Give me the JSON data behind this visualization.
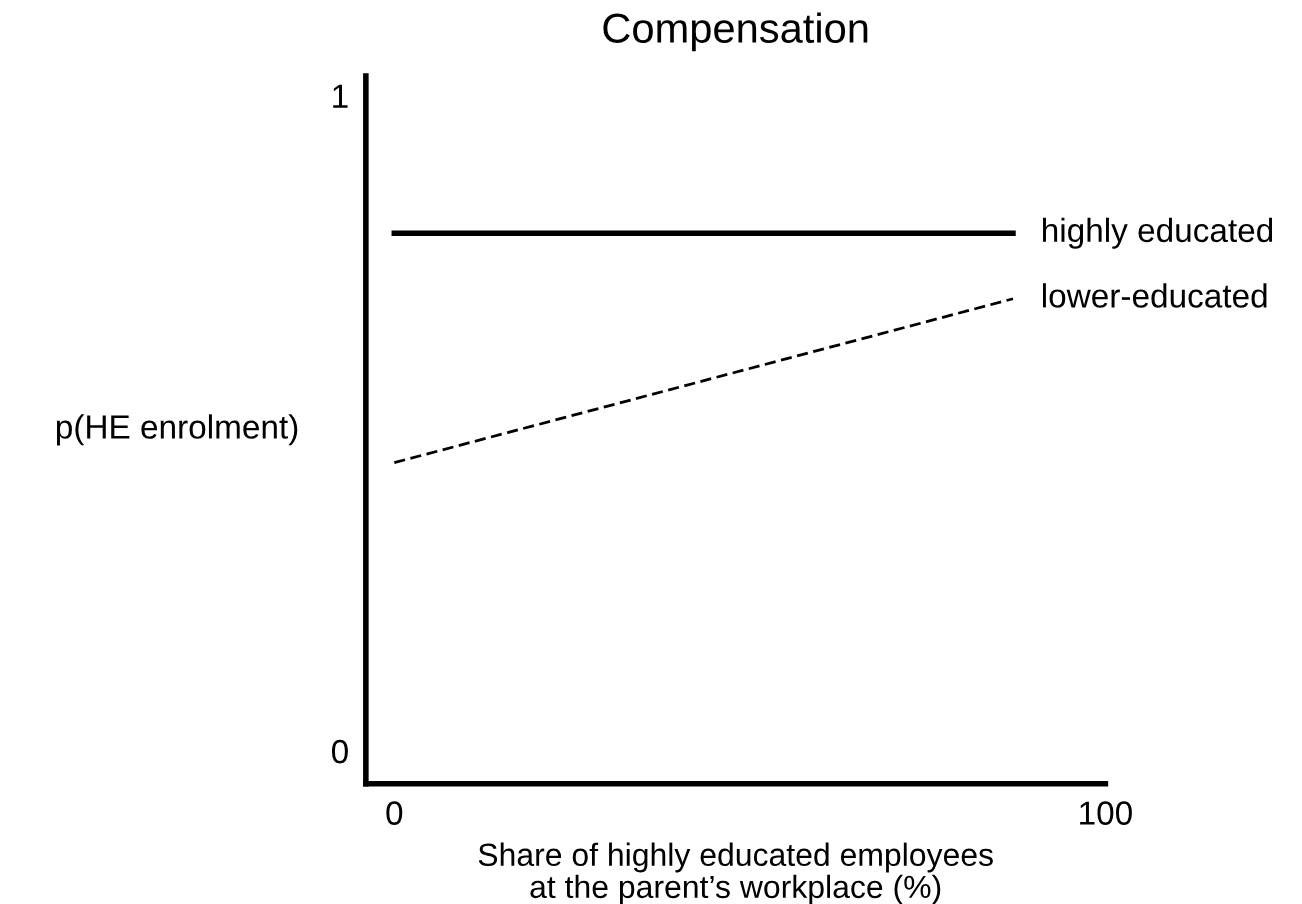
{
  "chart_data": {
    "type": "line",
    "title": "Compensation",
    "xlabel": "Share of highly educated employees\nat the parent’s workplace (%)",
    "ylabel": "p(HE enrolment)",
    "x": [
      0,
      87
    ],
    "series": [
      {
        "name": "highly educated",
        "color": "#000000",
        "values": [
          0.79,
          0.79
        ],
        "line_style": "solid"
      },
      {
        "name": "lower-educated",
        "color": "#000000",
        "values": [
          0.44,
          0.69
        ],
        "line_style": "dashed"
      }
    ],
    "xlim": [
      -4,
      100
    ],
    "ylim": [
      -0.05,
      1.03
    ],
    "xticks": [
      0,
      100
    ],
    "yticks": [
      0,
      1
    ],
    "grid": false,
    "legend": false,
    "marker": "none"
  }
}
